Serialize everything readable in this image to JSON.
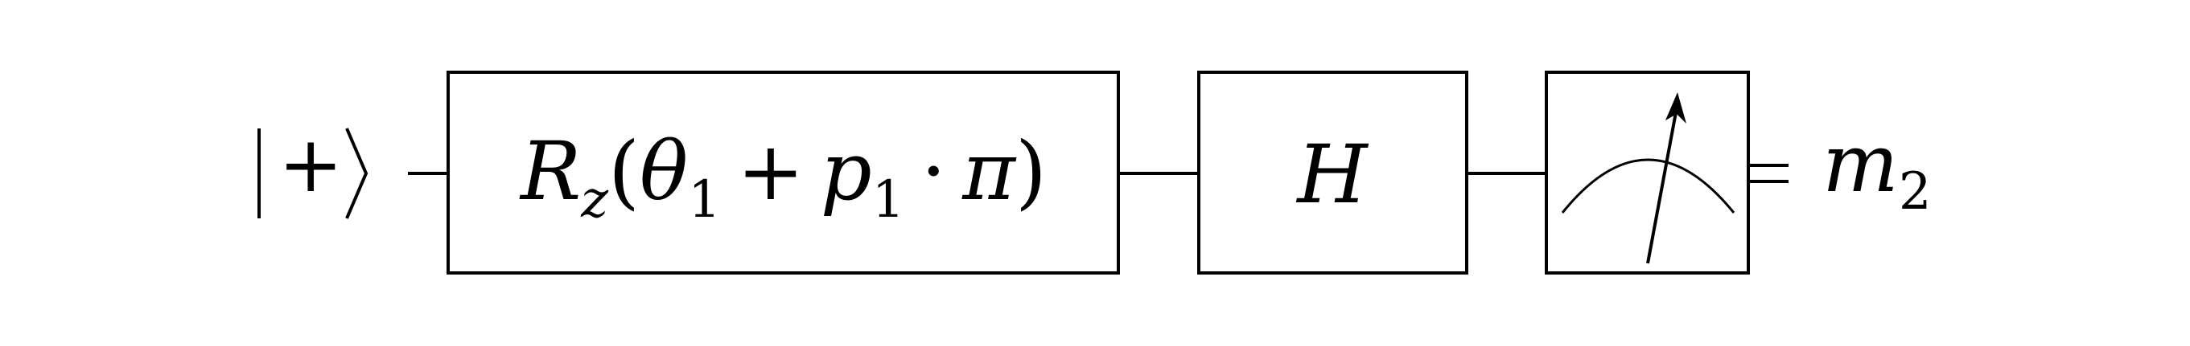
{
  "circuit": {
    "input_state": "|+⟩",
    "gates": [
      {
        "type": "rotation",
        "label": "R",
        "label_subscript": "z",
        "argument": {
          "open": "(",
          "theta": "θ",
          "theta_subscript": "1",
          "plus": "+",
          "p": "p",
          "p_subscript": "1",
          "dot": "·",
          "pi": "π",
          "close": ")"
        }
      },
      {
        "type": "hadamard",
        "label": "H"
      },
      {
        "type": "measurement",
        "icon": "meter-icon"
      }
    ],
    "output": {
      "symbol": "m",
      "subscript": "2"
    }
  }
}
